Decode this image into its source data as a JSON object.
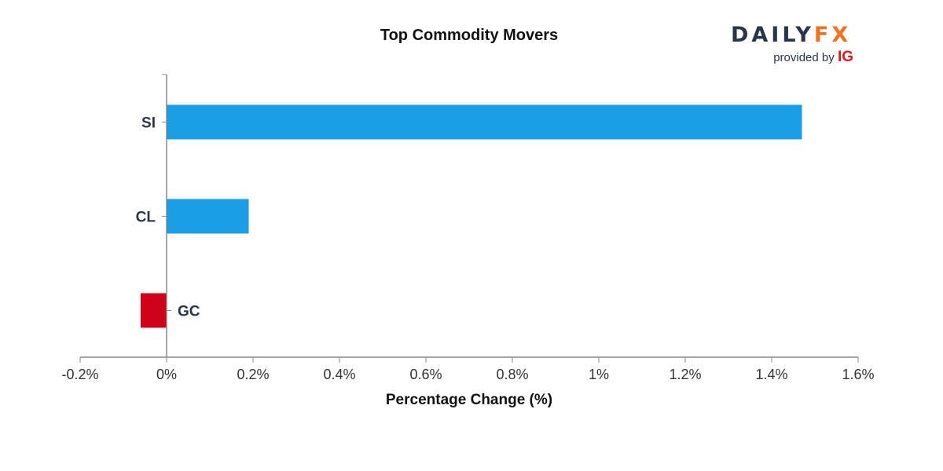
{
  "logo": {
    "daily": "DAILY",
    "fx": "FX",
    "provided_by": "provided by",
    "ig": "IG"
  },
  "colors": {
    "positive": "#1a9ee6",
    "negative": "#d0021b",
    "axis": "#888888",
    "text": "#2a3549"
  },
  "chart_data": {
    "type": "bar",
    "orientation": "horizontal",
    "title": "Top Commodity Movers",
    "xlabel": "Percentage Change (%)",
    "ylabel": "",
    "xlim": [
      -0.2,
      1.6
    ],
    "x_ticks": [
      -0.2,
      0,
      0.2,
      0.4,
      0.6,
      0.8,
      1,
      1.2,
      1.4,
      1.6
    ],
    "x_tick_labels": [
      "-0.2%",
      "0%",
      "0.2%",
      "0.4%",
      "0.6%",
      "0.8%",
      "1%",
      "1.2%",
      "1.4%",
      "1.6%"
    ],
    "categories": [
      "SI",
      "CL",
      "GC"
    ],
    "values": [
      1.47,
      0.19,
      -0.06
    ],
    "grid": false,
    "legend": "none"
  }
}
